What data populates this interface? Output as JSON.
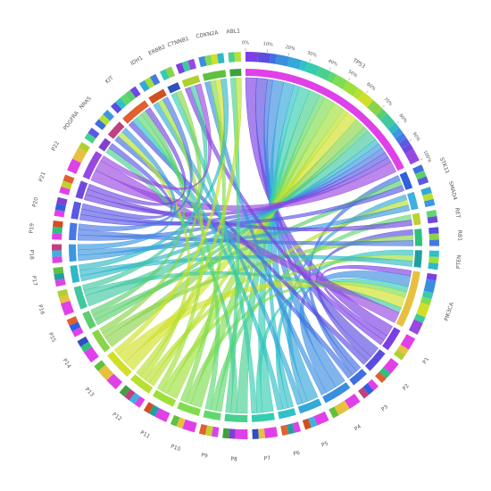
{
  "chart_data": {
    "type": "chord",
    "segments": [
      {
        "name": "TP53",
        "color": "#e040e8"
      },
      {
        "name": "STK11",
        "color": "#3060e0"
      },
      {
        "name": "SMAD4",
        "color": "#40b0e0"
      },
      {
        "name": "RET",
        "color": "#c0d030"
      },
      {
        "name": "RB1",
        "color": "#30c080"
      },
      {
        "name": "PTEN",
        "color": "#20a0a0"
      },
      {
        "name": "PIK3CA",
        "color": "#e8c040"
      },
      {
        "name": "P1",
        "color": "#7b3fe4"
      },
      {
        "name": "P2",
        "color": "#5a4de0"
      },
      {
        "name": "P3",
        "color": "#3f6fe0"
      },
      {
        "name": "P4",
        "color": "#3a8ee0"
      },
      {
        "name": "P5",
        "color": "#34a8d8"
      },
      {
        "name": "P6",
        "color": "#30c0c8"
      },
      {
        "name": "P7",
        "color": "#36ccb0"
      },
      {
        "name": "P8",
        "color": "#48d090"
      },
      {
        "name": "P9",
        "color": "#60d870"
      },
      {
        "name": "P10",
        "color": "#80dc50"
      },
      {
        "name": "P11",
        "color": "#9ee03a"
      },
      {
        "name": "P12",
        "color": "#b8e030"
      },
      {
        "name": "P13",
        "color": "#d0e028"
      },
      {
        "name": "P14",
        "color": "#8ad44a"
      },
      {
        "name": "P15",
        "color": "#5ccf6c"
      },
      {
        "name": "P16",
        "color": "#40c8a0"
      },
      {
        "name": "P17",
        "color": "#2fb8c8"
      },
      {
        "name": "P18",
        "color": "#3a98e0"
      },
      {
        "name": "P19",
        "color": "#4878e4"
      },
      {
        "name": "P20",
        "color": "#5a58e4"
      },
      {
        "name": "P21",
        "color": "#7048e0"
      },
      {
        "name": "P22",
        "color": "#9848e0"
      },
      {
        "name": "PDGFRA",
        "color": "#8040d0"
      },
      {
        "name": "NRAS",
        "color": "#c04080"
      },
      {
        "name": "KIT",
        "color": "#e06030"
      },
      {
        "name": "IDH1",
        "color": "#d05020"
      },
      {
        "name": "ERBB2",
        "color": "#3050c0"
      },
      {
        "name": "CTNNB1",
        "color": "#b0d030"
      },
      {
        "name": "CDKN2A",
        "color": "#60c040"
      },
      {
        "name": "ABL1",
        "color": "#40a040"
      }
    ],
    "chords": [
      {
        "source": "TP53",
        "target": "P1",
        "value": 2
      },
      {
        "source": "TP53",
        "target": "P2",
        "value": 2
      },
      {
        "source": "TP53",
        "target": "P3",
        "value": 1
      },
      {
        "source": "TP53",
        "target": "P4",
        "value": 2
      },
      {
        "source": "TP53",
        "target": "P5",
        "value": 2
      },
      {
        "source": "TP53",
        "target": "P6",
        "value": 1
      },
      {
        "source": "TP53",
        "target": "P7",
        "value": 2
      },
      {
        "source": "TP53",
        "target": "P8",
        "value": 2
      },
      {
        "source": "TP53",
        "target": "P9",
        "value": 1
      },
      {
        "source": "TP53",
        "target": "P10",
        "value": 2
      },
      {
        "source": "TP53",
        "target": "P11",
        "value": 2
      },
      {
        "source": "TP53",
        "target": "P12",
        "value": 1
      },
      {
        "source": "TP53",
        "target": "P13",
        "value": 2
      },
      {
        "source": "TP53",
        "target": "P14",
        "value": 2
      },
      {
        "source": "TP53",
        "target": "P15",
        "value": 1
      },
      {
        "source": "TP53",
        "target": "P16",
        "value": 2
      },
      {
        "source": "TP53",
        "target": "P17",
        "value": 1
      },
      {
        "source": "TP53",
        "target": "P18",
        "value": 1
      },
      {
        "source": "TP53",
        "target": "P19",
        "value": 1
      },
      {
        "source": "TP53",
        "target": "P20",
        "value": 1
      },
      {
        "source": "TP53",
        "target": "P21",
        "value": 1
      },
      {
        "source": "TP53",
        "target": "P22",
        "value": 2
      },
      {
        "source": "STK11",
        "target": "P3",
        "value": 1
      },
      {
        "source": "STK11",
        "target": "P15",
        "value": 1
      },
      {
        "source": "STK11",
        "target": "P20",
        "value": 1
      },
      {
        "source": "SMAD4",
        "target": "P5",
        "value": 1
      },
      {
        "source": "SMAD4",
        "target": "P12",
        "value": 1
      },
      {
        "source": "SMAD4",
        "target": "P18",
        "value": 1
      },
      {
        "source": "RET",
        "target": "P9",
        "value": 1
      },
      {
        "source": "RET",
        "target": "P21",
        "value": 1
      },
      {
        "source": "RB1",
        "target": "P2",
        "value": 1
      },
      {
        "source": "RB1",
        "target": "P14",
        "value": 1
      },
      {
        "source": "RB1",
        "target": "P19",
        "value": 1
      },
      {
        "source": "PTEN",
        "target": "P6",
        "value": 1
      },
      {
        "source": "PTEN",
        "target": "P11",
        "value": 1
      },
      {
        "source": "PTEN",
        "target": "P17",
        "value": 1
      },
      {
        "source": "PIK3CA",
        "target": "P1",
        "value": 1
      },
      {
        "source": "PIK3CA",
        "target": "P4",
        "value": 2
      },
      {
        "source": "PIK3CA",
        "target": "P7",
        "value": 1
      },
      {
        "source": "PIK3CA",
        "target": "P10",
        "value": 1
      },
      {
        "source": "PIK3CA",
        "target": "P13",
        "value": 2
      },
      {
        "source": "PIK3CA",
        "target": "P16",
        "value": 1
      },
      {
        "source": "PIK3CA",
        "target": "P22",
        "value": 2
      },
      {
        "source": "PDGFRA",
        "target": "P8",
        "value": 1
      },
      {
        "source": "PDGFRA",
        "target": "P20",
        "value": 1
      },
      {
        "source": "NRAS",
        "target": "P3",
        "value": 1
      },
      {
        "source": "NRAS",
        "target": "P12",
        "value": 1
      },
      {
        "source": "NRAS",
        "target": "P18",
        "value": 1
      },
      {
        "source": "KIT",
        "target": "P2",
        "value": 1
      },
      {
        "source": "KIT",
        "target": "P6",
        "value": 1
      },
      {
        "source": "KIT",
        "target": "P9",
        "value": 1
      },
      {
        "source": "KIT",
        "target": "P15",
        "value": 1
      },
      {
        "source": "KIT",
        "target": "P21",
        "value": 1
      },
      {
        "source": "IDH1",
        "target": "P5",
        "value": 1
      },
      {
        "source": "IDH1",
        "target": "P11",
        "value": 1
      },
      {
        "source": "IDH1",
        "target": "P19",
        "value": 1
      },
      {
        "source": "ERBB2",
        "target": "P7",
        "value": 1
      },
      {
        "source": "ERBB2",
        "target": "P14",
        "value": 1
      },
      {
        "source": "CTNNB1",
        "target": "P1",
        "value": 1
      },
      {
        "source": "CTNNB1",
        "target": "P16",
        "value": 1
      },
      {
        "source": "CTNNB1",
        "target": "P22",
        "value": 1
      },
      {
        "source": "CDKN2A",
        "target": "P4",
        "value": 1
      },
      {
        "source": "CDKN2A",
        "target": "P10",
        "value": 1
      },
      {
        "source": "CDKN2A",
        "target": "P13",
        "value": 1
      },
      {
        "source": "CDKN2A",
        "target": "P17",
        "value": 1
      },
      {
        "source": "ABL1",
        "target": "P8",
        "value": 1
      },
      {
        "source": "ABL1",
        "target": "P12",
        "value": 1
      }
    ],
    "percent_ticks": [
      {
        "value": 0,
        "label": "0%"
      },
      {
        "value": 10,
        "label": "10%"
      },
      {
        "value": 20,
        "label": "20%"
      },
      {
        "value": 30,
        "label": "30%"
      },
      {
        "value": 40,
        "label": "40%"
      },
      {
        "value": 50,
        "label": "50%"
      },
      {
        "value": 60,
        "label": "60%"
      },
      {
        "value": 70,
        "label": "70%"
      },
      {
        "value": 80,
        "label": "80%"
      },
      {
        "value": 90,
        "label": "90%"
      },
      {
        "value": 100,
        "label": "100%"
      }
    ]
  }
}
